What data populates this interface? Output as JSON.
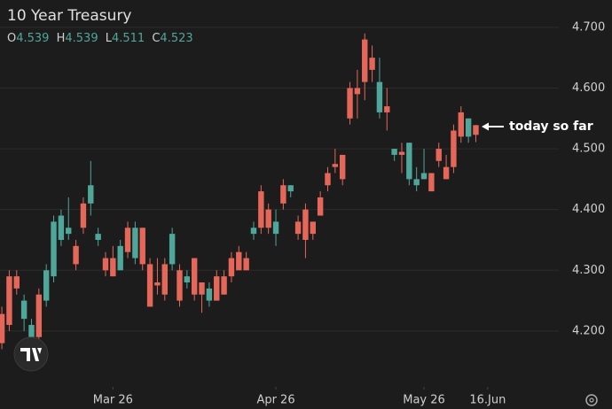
{
  "chart_data": {
    "type": "candlestick",
    "title": "10 Year Treasury",
    "ohlc_labels": [
      "O",
      "H",
      "L",
      "C"
    ],
    "annotation": "today so far",
    "up_color": "#4fa69a",
    "down_color": "#e5675a",
    "grid": true,
    "xlim": [
      -0.25,
      75.2
    ],
    "xticks": [
      {
        "value": 15,
        "label": "Mar 26"
      },
      {
        "value": 37,
        "label": "Apr 26"
      },
      {
        "value": 57,
        "label": "May 26"
      },
      {
        "value": 65.6,
        "label": "16.Jun"
      }
    ],
    "ylim": [
      4.108,
      4.745
    ],
    "yticks": [
      {
        "value": 4.2,
        "label": "4.200"
      },
      {
        "value": 4.3,
        "label": "4.300"
      },
      {
        "value": 4.4,
        "label": "4.400"
      },
      {
        "value": 4.5,
        "label": "4.500"
      },
      {
        "value": 4.6,
        "label": "4.600"
      },
      {
        "value": 4.7,
        "label": "4.700"
      }
    ],
    "open": [
      4.228,
      4.29,
      4.29,
      4.22,
      4.19,
      4.26,
      4.25,
      4.29,
      4.35,
      4.36,
      4.34,
      4.41,
      4.41,
      4.35,
      4.32,
      4.32,
      4.3,
      4.37,
      4.32,
      4.37,
      4.31,
      4.28,
      4.31,
      4.31,
      4.3,
      4.28,
      4.32,
      4.28,
      4.25,
      4.29,
      4.29,
      4.32,
      4.33,
      4.32,
      4.36,
      4.43,
      4.4,
      4.36,
      4.44,
      4.43,
      4.38,
      4.4,
      4.38,
      4.42,
      4.46,
      4.475,
      4.49,
      4.6,
      4.6,
      4.68,
      4.65,
      4.56,
      4.57,
      4.49,
      4.495,
      4.45,
      4.44,
      4.45,
      4.46,
      4.5,
      4.47,
      4.53,
      4.56,
      4.52,
      4.539
    ],
    "high": [
      4.24,
      4.3,
      4.3,
      4.26,
      4.22,
      4.27,
      4.31,
      4.39,
      4.4,
      4.42,
      4.35,
      4.42,
      4.48,
      4.37,
      4.33,
      4.34,
      4.35,
      4.38,
      4.38,
      4.37,
      4.32,
      4.32,
      4.32,
      4.37,
      4.31,
      4.3,
      4.32,
      4.28,
      4.28,
      4.3,
      4.3,
      4.33,
      4.34,
      4.33,
      4.38,
      4.44,
      4.41,
      4.4,
      4.45,
      4.44,
      4.39,
      4.41,
      4.38,
      4.43,
      4.47,
      4.5,
      4.49,
      4.61,
      4.63,
      4.69,
      4.67,
      4.65,
      4.6,
      4.5,
      4.51,
      4.51,
      4.47,
      4.5,
      4.46,
      4.51,
      4.49,
      4.54,
      4.57,
      4.55,
      4.539
    ],
    "low": [
      4.17,
      4.2,
      4.26,
      4.2,
      4.18,
      4.18,
      4.24,
      4.28,
      4.34,
      4.35,
      4.3,
      4.36,
      4.39,
      4.34,
      4.29,
      4.29,
      4.3,
      4.32,
      4.31,
      4.3,
      4.24,
      4.26,
      4.25,
      4.3,
      4.24,
      4.27,
      4.25,
      4.23,
      4.24,
      4.25,
      4.26,
      4.28,
      4.3,
      4.3,
      4.35,
      4.36,
      4.36,
      4.34,
      4.4,
      4.42,
      4.35,
      4.32,
      4.35,
      4.39,
      4.43,
      4.46,
      4.44,
      4.54,
      4.55,
      4.58,
      4.61,
      4.55,
      4.53,
      4.48,
      4.46,
      4.44,
      4.43,
      4.45,
      4.43,
      4.47,
      4.45,
      4.46,
      4.51,
      4.51,
      4.511
    ],
    "close": [
      4.18,
      4.21,
      4.27,
      4.25,
      4.21,
      4.19,
      4.3,
      4.38,
      4.39,
      4.37,
      4.31,
      4.37,
      4.44,
      4.36,
      4.3,
      4.29,
      4.34,
      4.33,
      4.37,
      4.31,
      4.24,
      4.275,
      4.26,
      4.36,
      4.25,
      4.29,
      4.26,
      4.26,
      4.27,
      4.25,
      4.26,
      4.29,
      4.3,
      4.3,
      4.37,
      4.37,
      4.37,
      4.38,
      4.41,
      4.44,
      4.36,
      4.35,
      4.36,
      4.39,
      4.44,
      4.47,
      4.45,
      4.55,
      4.59,
      4.61,
      4.63,
      4.61,
      4.56,
      4.5,
      4.49,
      4.51,
      4.45,
      4.46,
      4.43,
      4.48,
      4.45,
      4.47,
      4.52,
      4.55,
      4.523
    ]
  }
}
